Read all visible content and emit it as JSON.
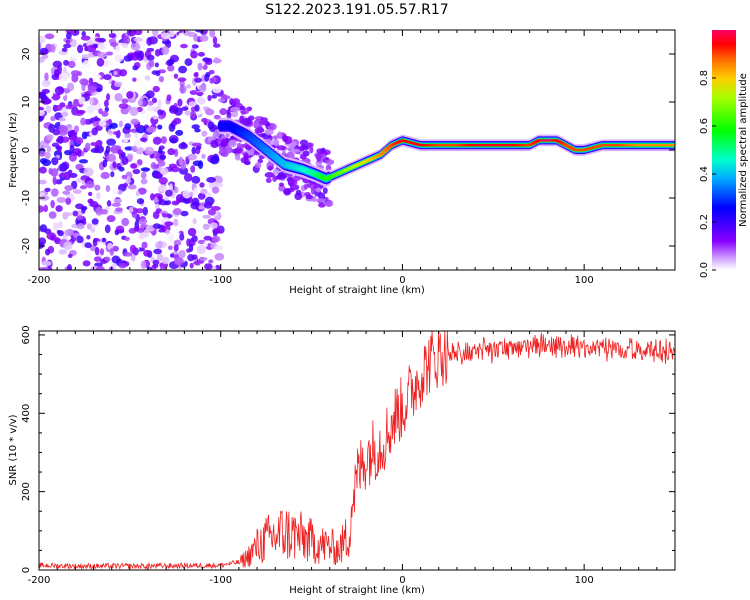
{
  "title": "S122.2023.191.05.57.R17",
  "chart_data": [
    {
      "type": "heatmap",
      "xlabel": "Height of straight line (km)",
      "ylabel": "Frequency (Hz)",
      "xlim": [
        -200,
        150
      ],
      "ylim": [
        -25,
        25
      ],
      "x_ticks": [
        -200,
        -100,
        0,
        100
      ],
      "x_tick_labels": [
        "-200",
        "-100",
        "0",
        "100"
      ],
      "y_ticks": [
        -20,
        -10,
        0,
        10,
        20
      ],
      "y_tick_labels": [
        "-20",
        "-10",
        "0",
        "10",
        "20"
      ],
      "colorbar": {
        "label": "Normalized spectral amplitude",
        "range": [
          0,
          1
        ],
        "ticks": [
          0.0,
          0.2,
          0.4,
          0.6,
          0.8
        ],
        "tick_labels": [
          "0.0",
          "0.2",
          "0.4",
          "0.6",
          "0.8"
        ]
      },
      "ridge": {
        "x": [
          -95,
          -85,
          -75,
          -65,
          -55,
          -48,
          -42,
          -36,
          -30,
          -24,
          -18,
          -12,
          -6,
          0,
          10,
          20,
          30,
          40,
          50,
          60,
          70,
          75,
          80,
          85,
          90,
          95,
          100,
          110,
          120,
          130,
          140,
          150
        ],
        "freq": [
          5,
          3,
          0,
          -3,
          -4,
          -5,
          -6,
          -5,
          -4,
          -3,
          -2,
          -1,
          1,
          2,
          1,
          1,
          1,
          1,
          1,
          1,
          1,
          2,
          2,
          2,
          1,
          0,
          0,
          1,
          1,
          1,
          1,
          1
        ],
        "amplitude": [
          0.25,
          0.3,
          0.35,
          0.4,
          0.45,
          0.5,
          0.6,
          0.65,
          0.7,
          0.75,
          0.8,
          0.85,
          0.9,
          0.95,
          0.95,
          0.9,
          0.9,
          0.95,
          0.95,
          0.95,
          0.9,
          0.95,
          1.0,
          0.95,
          0.9,
          0.9,
          0.9,
          0.9,
          0.9,
          0.85,
          0.85,
          0.85
        ]
      },
      "noise_region": {
        "x_range": [
          -200,
          -100
        ],
        "freq_range": [
          -25,
          25
        ],
        "amplitude_max": 0.2
      }
    },
    {
      "type": "line",
      "xlabel": "Height of straight line (km)",
      "ylabel": "SNR (10 * v/v)",
      "xlim": [
        -200,
        150
      ],
      "ylim": [
        0,
        610
      ],
      "x_ticks": [
        -200,
        -100,
        0,
        100
      ],
      "x_tick_labels": [
        "-200",
        "-100",
        "0",
        "100"
      ],
      "y_ticks": [
        0,
        200,
        400,
        600
      ],
      "y_tick_labels": [
        "0",
        "200",
        "400",
        "600"
      ],
      "color": "#ee2222",
      "x": [
        -200,
        -180,
        -160,
        -140,
        -120,
        -100,
        -90,
        -85,
        -80,
        -75,
        -70,
        -65,
        -60,
        -55,
        -50,
        -45,
        -40,
        -35,
        -30,
        -27,
        -24,
        -21,
        -18,
        -15,
        -12,
        -9,
        -6,
        -3,
        0,
        3,
        6,
        9,
        12,
        15,
        18,
        21,
        25,
        30,
        40,
        50,
        60,
        70,
        80,
        90,
        100,
        110,
        120,
        130,
        140,
        150
      ],
      "y": [
        12,
        10,
        10,
        10,
        11,
        12,
        20,
        40,
        70,
        90,
        100,
        110,
        105,
        95,
        85,
        75,
        70,
        60,
        100,
        200,
        260,
        290,
        310,
        320,
        330,
        350,
        380,
        410,
        420,
        450,
        470,
        500,
        520,
        540,
        550,
        560,
        565,
        570,
        575,
        580,
        583,
        585,
        590,
        585,
        580,
        583,
        580,
        578,
        575,
        572
      ]
    }
  ]
}
